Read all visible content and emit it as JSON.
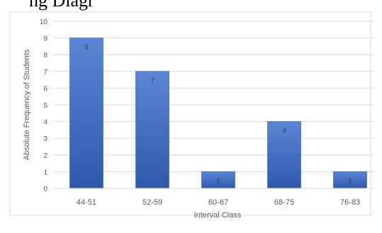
{
  "page": {
    "top_fragment_text": "ng Diagr"
  },
  "colors": {
    "bar": "#4472c4",
    "bar_light": "#5b86d6",
    "bar_dark": "#2f59ab",
    "grid": "#d9d9d9",
    "text": "#595959",
    "border": "#d9d9d9"
  },
  "chart_data": {
    "type": "bar",
    "title": "",
    "xlabel": "Interval Class",
    "ylabel": "Absolute Frequency of Students",
    "categories": [
      "44-51",
      "52-59",
      "60-67",
      "68-75",
      "76-83"
    ],
    "values": [
      9,
      7,
      1,
      4,
      1
    ],
    "ylim": [
      0,
      10
    ],
    "yticks": [
      0,
      1,
      2,
      3,
      4,
      5,
      6,
      7,
      8,
      9,
      10
    ],
    "grid": true,
    "legend": "none",
    "data_labels": true
  }
}
